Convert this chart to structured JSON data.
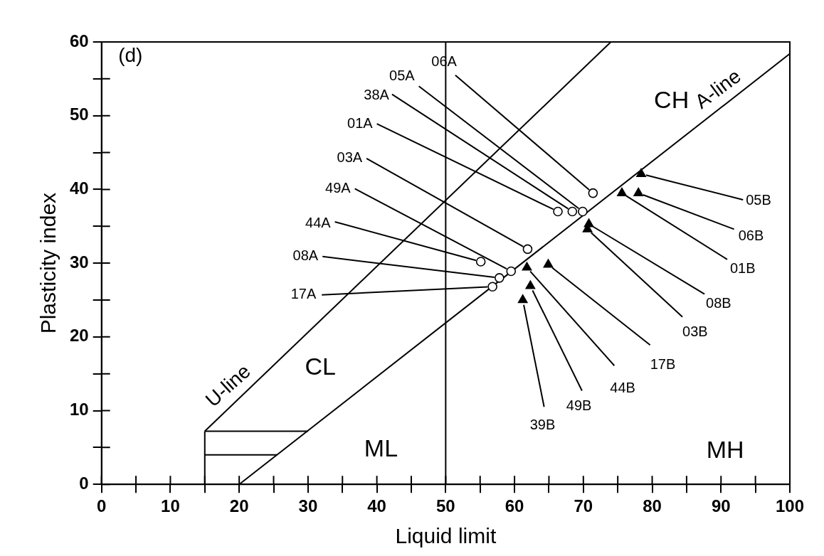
{
  "chart_data": {
    "type": "scatter",
    "xlabel": "Liquid limit",
    "ylabel": "Plasticity index",
    "xlim": [
      0,
      100
    ],
    "ylim": [
      0,
      60
    ],
    "xticks": [
      0,
      {
        "value": 5,
        "label": null
      },
      10,
      {
        "value": 15,
        "label": null
      },
      20,
      {
        "value": 25,
        "label": null
      },
      30,
      {
        "value": 35,
        "label": null
      },
      40,
      {
        "value": 45,
        "label": null
      },
      50,
      {
        "value": 55,
        "label": null
      },
      60,
      {
        "value": 65,
        "label": null
      },
      70,
      {
        "value": 75,
        "label": null
      },
      80,
      {
        "value": 85,
        "label": null
      },
      90,
      {
        "value": 95,
        "label": null
      },
      100
    ],
    "yticks": [
      0,
      {
        "value": 5,
        "label": null
      },
      10,
      {
        "value": 15,
        "label": null
      },
      20,
      {
        "value": 25,
        "label": null
      },
      30,
      {
        "value": 35,
        "label": null
      },
      40,
      {
        "value": 45,
        "label": null
      },
      50,
      {
        "value": 55,
        "label": null
      },
      60
    ],
    "grid": false,
    "legend": false,
    "series": [
      {
        "type": "scatter",
        "marker": "circle",
        "color": "#000000",
        "x": [
          71.4,
          69.9,
          68.4,
          66.3,
          61.9,
          59.5,
          55.1,
          57.8,
          56.8
        ],
        "values": [
          39.5,
          37.0,
          37.0,
          37.0,
          31.9,
          28.9,
          30.2,
          28.0,
          26.8
        ]
      },
      {
        "type": "scatter",
        "marker": "triangle",
        "color": "#000000",
        "x": [
          78.4,
          78.0,
          75.6,
          70.8,
          70.6,
          64.9,
          61.8,
          62.3,
          61.2
        ],
        "values": [
          42.1,
          39.5,
          39.5,
          35.3,
          34.6,
          29.8,
          29.4,
          26.9,
          25.0
        ]
      },
      {
        "type": "line",
        "marker": "none",
        "color": "#000000",
        "x": [
          15,
          74
        ],
        "values": [
          7.2,
          60
        ]
      },
      {
        "type": "line",
        "marker": "none",
        "color": "#000000",
        "x": [
          20,
          100
        ],
        "values": [
          0,
          58.4
        ]
      },
      {
        "type": "line",
        "marker": "none",
        "color": "#000000",
        "x": [
          15,
          15
        ],
        "values": [
          0,
          7.2
        ]
      },
      {
        "type": "line",
        "marker": "none",
        "color": "#000000",
        "x": [
          15,
          30
        ],
        "values": [
          7.2,
          7.2
        ]
      },
      {
        "type": "line",
        "marker": "none",
        "color": "#000000",
        "x": [
          15,
          25.5
        ],
        "values": [
          4,
          4
        ]
      }
    ],
    "ref_lines": [
      {
        "axis": "x",
        "value": 50,
        "color": "#000000"
      }
    ],
    "annotations": [
      {
        "text": "06A",
        "x": 71.4,
        "y": 39.5
      },
      {
        "text": "05A",
        "x": 69.9,
        "y": 37.0
      },
      {
        "text": "38A",
        "x": 68.4,
        "y": 37.0
      },
      {
        "text": "01A",
        "x": 66.3,
        "y": 37.0
      },
      {
        "text": "03A",
        "x": 61.9,
        "y": 31.9
      },
      {
        "text": "49A",
        "x": 59.5,
        "y": 28.9
      },
      {
        "text": "44A",
        "x": 55.1,
        "y": 30.2
      },
      {
        "text": "08A",
        "x": 57.8,
        "y": 28.0
      },
      {
        "text": "17A",
        "x": 56.8,
        "y": 26.8
      },
      {
        "text": "05B",
        "x": 78.4,
        "y": 42.1
      },
      {
        "text": "06B",
        "x": 78.0,
        "y": 39.5
      },
      {
        "text": "01B",
        "x": 75.6,
        "y": 39.5
      },
      {
        "text": "08B",
        "x": 70.8,
        "y": 35.3
      },
      {
        "text": "03B",
        "x": 70.6,
        "y": 34.6
      },
      {
        "text": "17B",
        "x": 64.9,
        "y": 29.8
      },
      {
        "text": "44B",
        "x": 61.8,
        "y": 29.4
      },
      {
        "text": "49B",
        "x": 62.3,
        "y": 26.9
      },
      {
        "text": "39B",
        "x": 61.2,
        "y": 25.0
      },
      {
        "text": "U-line",
        "x": 20,
        "y": 11.7
      },
      {
        "text": "A-line",
        "x": 91,
        "y": 51.8
      },
      "(d)",
      "CH",
      "CL",
      "ML",
      "MH"
    ]
  }
}
